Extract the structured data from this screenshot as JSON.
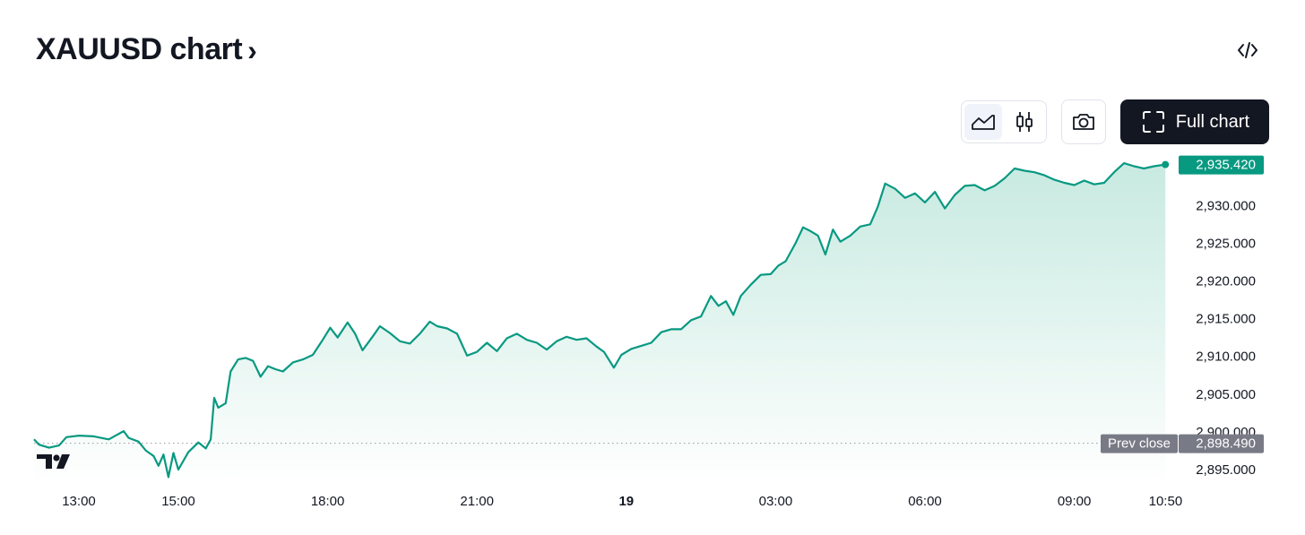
{
  "header": {
    "title": "XAUUSD chart",
    "chevron": "›",
    "embed_icon": "code-icon"
  },
  "toolbar": {
    "line_icon": "line-chart-icon",
    "candle_icon": "candlestick-icon",
    "camera_icon": "camera-icon",
    "full_chart_label": "Full chart",
    "full_chart_icon": "fullscreen-icon"
  },
  "colors": {
    "line": "#089981",
    "fill_top": "#c5e9df",
    "fill_bottom": "#ffffff",
    "last_badge": "#089981",
    "prev_badge": "#787b86",
    "text": "#131722"
  },
  "chart_data": {
    "type": "area",
    "symbol": "XAUUSD",
    "x_ticks": [
      {
        "label": "13:00",
        "hour": 13.0
      },
      {
        "label": "15:00",
        "hour": 15.0
      },
      {
        "label": "18:00",
        "hour": 18.0
      },
      {
        "label": "21:00",
        "hour": 21.0
      },
      {
        "label": "19",
        "hour": 24.0,
        "bold": true
      },
      {
        "label": "03:00",
        "hour": 27.0
      },
      {
        "label": "06:00",
        "hour": 30.0
      },
      {
        "label": "09:00",
        "hour": 33.0
      },
      {
        "label": "10:50",
        "hour": 34.8333
      }
    ],
    "y_ticks": [
      "2,895.000",
      "2,900.000",
      "2,905.000",
      "2,910.000",
      "2,915.000",
      "2,920.000",
      "2,925.000",
      "2,930.000"
    ],
    "y_tick_values": [
      2895,
      2900,
      2905,
      2910,
      2915,
      2920,
      2925,
      2930
    ],
    "ylim": [
      2893.1,
      2936.8
    ],
    "xlim_hours": [
      12.1,
      34.97
    ],
    "grid": false,
    "last_price": 2935.42,
    "last_price_label": "2,935.420",
    "prev_close": 2898.49,
    "prev_close_label": "2,898.490",
    "prev_close_text": "Prev close",
    "series": [
      {
        "points": [
          [
            12.1,
            2899.0
          ],
          [
            12.2,
            2898.3
          ],
          [
            12.4,
            2897.9
          ],
          [
            12.6,
            2898.2
          ],
          [
            12.75,
            2899.3
          ],
          [
            13.0,
            2899.5
          ],
          [
            13.3,
            2899.4
          ],
          [
            13.6,
            2899.0
          ],
          [
            13.9,
            2900.1
          ],
          [
            14.0,
            2899.2
          ],
          [
            14.2,
            2898.7
          ],
          [
            14.35,
            2897.5
          ],
          [
            14.5,
            2896.8
          ],
          [
            14.6,
            2895.5
          ],
          [
            14.7,
            2897.0
          ],
          [
            14.8,
            2894.0
          ],
          [
            14.9,
            2897.2
          ],
          [
            15.0,
            2895.0
          ],
          [
            15.2,
            2897.3
          ],
          [
            15.4,
            2898.6
          ],
          [
            15.55,
            2897.8
          ],
          [
            15.65,
            2899.0
          ],
          [
            15.72,
            2904.5
          ],
          [
            15.8,
            2903.2
          ],
          [
            15.95,
            2903.8
          ],
          [
            16.05,
            2908.0
          ],
          [
            16.2,
            2909.6
          ],
          [
            16.35,
            2909.8
          ],
          [
            16.5,
            2909.4
          ],
          [
            16.65,
            2907.3
          ],
          [
            16.8,
            2908.7
          ],
          [
            16.95,
            2908.3
          ],
          [
            17.1,
            2908.0
          ],
          [
            17.3,
            2909.2
          ],
          [
            17.5,
            2909.6
          ],
          [
            17.7,
            2910.2
          ],
          [
            17.9,
            2912.2
          ],
          [
            18.05,
            2913.8
          ],
          [
            18.2,
            2912.5
          ],
          [
            18.4,
            2914.5
          ],
          [
            18.55,
            2913.0
          ],
          [
            18.7,
            2910.8
          ],
          [
            18.9,
            2912.6
          ],
          [
            19.05,
            2914.0
          ],
          [
            19.25,
            2913.1
          ],
          [
            19.45,
            2912.0
          ],
          [
            19.65,
            2911.7
          ],
          [
            19.85,
            2913.0
          ],
          [
            20.05,
            2914.6
          ],
          [
            20.2,
            2914.0
          ],
          [
            20.4,
            2913.7
          ],
          [
            20.6,
            2913.0
          ],
          [
            20.8,
            2910.1
          ],
          [
            21.0,
            2910.6
          ],
          [
            21.2,
            2911.8
          ],
          [
            21.4,
            2910.7
          ],
          [
            21.6,
            2912.4
          ],
          [
            21.8,
            2913.0
          ],
          [
            22.0,
            2912.2
          ],
          [
            22.2,
            2911.8
          ],
          [
            22.4,
            2910.9
          ],
          [
            22.6,
            2912.0
          ],
          [
            22.8,
            2912.6
          ],
          [
            23.0,
            2912.2
          ],
          [
            23.2,
            2912.4
          ],
          [
            23.4,
            2911.3
          ],
          [
            23.55,
            2910.6
          ],
          [
            23.75,
            2908.5
          ],
          [
            23.9,
            2910.2
          ],
          [
            24.1,
            2911.0
          ],
          [
            24.3,
            2911.4
          ],
          [
            24.5,
            2911.8
          ],
          [
            24.7,
            2913.2
          ],
          [
            24.9,
            2913.6
          ],
          [
            25.1,
            2913.6
          ],
          [
            25.3,
            2914.8
          ],
          [
            25.5,
            2915.3
          ],
          [
            25.7,
            2918.0
          ],
          [
            25.85,
            2916.7
          ],
          [
            26.0,
            2917.3
          ],
          [
            26.15,
            2915.5
          ],
          [
            26.3,
            2918.0
          ],
          [
            26.5,
            2919.5
          ],
          [
            26.7,
            2920.8
          ],
          [
            26.9,
            2920.9
          ],
          [
            27.05,
            2922.0
          ],
          [
            27.2,
            2922.6
          ],
          [
            27.4,
            2925.0
          ],
          [
            27.55,
            2927.1
          ],
          [
            27.7,
            2926.6
          ],
          [
            27.85,
            2926.0
          ],
          [
            28.0,
            2923.5
          ],
          [
            28.15,
            2926.8
          ],
          [
            28.3,
            2925.2
          ],
          [
            28.5,
            2926.0
          ],
          [
            28.7,
            2927.2
          ],
          [
            28.9,
            2927.5
          ],
          [
            29.05,
            2929.8
          ],
          [
            29.2,
            2932.9
          ],
          [
            29.4,
            2932.2
          ],
          [
            29.6,
            2931.0
          ],
          [
            29.8,
            2931.6
          ],
          [
            30.0,
            2930.4
          ],
          [
            30.2,
            2931.8
          ],
          [
            30.4,
            2929.6
          ],
          [
            30.6,
            2931.4
          ],
          [
            30.8,
            2932.6
          ],
          [
            31.0,
            2932.7
          ],
          [
            31.2,
            2932.0
          ],
          [
            31.4,
            2932.6
          ],
          [
            31.6,
            2933.6
          ],
          [
            31.8,
            2934.9
          ],
          [
            32.0,
            2934.6
          ],
          [
            32.2,
            2934.4
          ],
          [
            32.4,
            2934.0
          ],
          [
            32.6,
            2933.4
          ],
          [
            32.8,
            2933.0
          ],
          [
            33.0,
            2932.7
          ],
          [
            33.2,
            2933.3
          ],
          [
            33.4,
            2932.8
          ],
          [
            33.6,
            2933.0
          ],
          [
            33.8,
            2934.4
          ],
          [
            34.0,
            2935.6
          ],
          [
            34.2,
            2935.2
          ],
          [
            34.4,
            2934.9
          ],
          [
            34.6,
            2935.2
          ],
          [
            34.83,
            2935.42
          ]
        ]
      }
    ]
  }
}
